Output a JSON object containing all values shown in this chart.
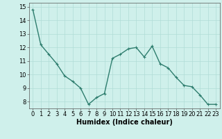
{
  "x": [
    0,
    1,
    2,
    3,
    4,
    5,
    6,
    7,
    8,
    9,
    10,
    11,
    12,
    13,
    14,
    15,
    16,
    17,
    18,
    19,
    20,
    21,
    22,
    23
  ],
  "y": [
    14.8,
    12.2,
    11.5,
    10.8,
    9.9,
    9.5,
    9.0,
    7.8,
    8.3,
    8.6,
    11.2,
    11.5,
    11.9,
    12.0,
    11.3,
    12.1,
    10.8,
    10.5,
    9.8,
    9.2,
    9.1,
    8.5,
    7.8,
    7.8
  ],
  "line_color": "#2e7d6e",
  "marker": "+",
  "marker_size": 3.5,
  "bg_plot": "#cff0eb",
  "bg_fig": "#cff0eb",
  "grid_color": "#b0ddd6",
  "xlabel": "Humidex (Indice chaleur)",
  "xlabel_fontsize": 7,
  "xtick_labels": [
    "0",
    "1",
    "2",
    "3",
    "4",
    "5",
    "6",
    "7",
    "8",
    "9",
    "10",
    "11",
    "12",
    "13",
    "14",
    "15",
    "16",
    "17",
    "18",
    "19",
    "20",
    "21",
    "22",
    "23"
  ],
  "ytick_labels": [
    "8",
    "9",
    "10",
    "11",
    "12",
    "13",
    "14",
    "15"
  ],
  "yticks": [
    8,
    9,
    10,
    11,
    12,
    13,
    14,
    15
  ],
  "ylim": [
    7.5,
    15.3
  ],
  "xlim": [
    -0.5,
    23.5
  ],
  "tick_fontsize": 6,
  "linewidth": 1.0
}
